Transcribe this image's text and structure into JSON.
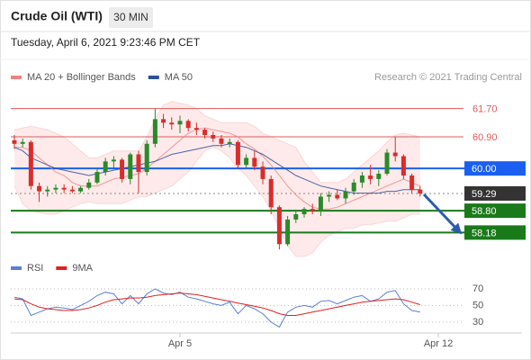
{
  "chart_data": [
    {
      "type": "candlestick",
      "title": "Crude Oil (WTI)",
      "interval": "30 MIN",
      "subtitle": "Tuesday, April 6, 2021 9:23:46 PM CET",
      "source": "Research © 2021 Trading Central",
      "up_color": "#2a8a2a",
      "down_color": "#d92c2c",
      "xlim": [
        -0.43,
        54.78
      ],
      "ylim": [
        57.5,
        62.1
      ],
      "ohlc": [
        [
          60.8,
          60.95,
          60.55,
          60.7
        ],
        [
          60.7,
          60.85,
          60.6,
          60.75
        ],
        [
          60.75,
          60.8,
          59.4,
          59.5
        ],
        [
          59.5,
          59.6,
          59.05,
          59.35
        ],
        [
          59.35,
          59.5,
          59.2,
          59.4
        ],
        [
          59.4,
          59.55,
          59.3,
          59.45
        ],
        [
          59.45,
          59.55,
          59.3,
          59.4
        ],
        [
          59.4,
          59.5,
          59.3,
          59.35
        ],
        [
          59.35,
          59.5,
          59.3,
          59.45
        ],
        [
          59.45,
          59.7,
          59.4,
          59.6
        ],
        [
          59.6,
          60.0,
          59.55,
          59.9
        ],
        [
          59.9,
          60.3,
          59.8,
          60.2
        ],
        [
          60.2,
          60.35,
          60.0,
          60.25
        ],
        [
          60.25,
          60.3,
          59.6,
          59.7
        ],
        [
          59.7,
          60.45,
          59.55,
          60.4
        ],
        [
          60.4,
          60.5,
          59.3,
          59.9
        ],
        [
          59.9,
          60.8,
          59.8,
          60.7
        ],
        [
          60.7,
          61.7,
          60.6,
          61.4
        ],
        [
          61.4,
          61.55,
          61.15,
          61.3
        ],
        [
          61.3,
          61.45,
          61.1,
          61.25
        ],
        [
          61.25,
          61.5,
          61.0,
          61.35
        ],
        [
          61.35,
          61.4,
          61.05,
          61.15
        ],
        [
          61.15,
          61.3,
          60.95,
          61.1
        ],
        [
          61.1,
          61.15,
          60.85,
          60.95
        ],
        [
          60.95,
          61.05,
          60.75,
          60.85
        ],
        [
          60.85,
          60.95,
          60.6,
          60.7
        ],
        [
          60.7,
          60.85,
          60.6,
          60.75
        ],
        [
          60.75,
          60.8,
          60.0,
          60.1
        ],
        [
          60.1,
          60.4,
          60.0,
          60.3
        ],
        [
          60.3,
          60.5,
          59.95,
          60.05
        ],
        [
          60.05,
          60.2,
          59.55,
          59.7
        ],
        [
          59.7,
          59.8,
          58.7,
          58.9
        ],
        [
          58.9,
          58.95,
          57.7,
          57.85
        ],
        [
          57.85,
          58.65,
          57.8,
          58.55
        ],
        [
          58.55,
          58.8,
          58.45,
          58.7
        ],
        [
          58.7,
          58.9,
          58.6,
          58.85
        ],
        [
          58.85,
          59.0,
          58.7,
          58.8
        ],
        [
          58.8,
          59.3,
          58.65,
          59.2
        ],
        [
          59.2,
          59.35,
          59.05,
          59.25
        ],
        [
          59.25,
          59.4,
          59.1,
          59.15
        ],
        [
          59.15,
          59.45,
          59.0,
          59.35
        ],
        [
          59.35,
          59.7,
          59.25,
          59.6
        ],
        [
          59.6,
          59.9,
          59.45,
          59.8
        ],
        [
          59.8,
          60.1,
          59.55,
          59.7
        ],
        [
          59.7,
          59.95,
          59.5,
          59.85
        ],
        [
          59.85,
          60.55,
          59.8,
          60.45
        ],
        [
          60.45,
          60.9,
          60.2,
          60.35
        ],
        [
          60.35,
          60.4,
          59.7,
          59.8
        ],
        [
          59.8,
          59.85,
          59.3,
          59.4
        ],
        [
          59.4,
          59.5,
          59.2,
          59.29
        ]
      ],
      "series": [
        {
          "name": "MA 20 + Bollinger Bands",
          "color": "#f08080",
          "values": [
            60.6,
            60.6,
            60.5,
            60.3,
            60.1,
            59.9,
            59.8,
            59.6,
            59.5,
            59.5,
            59.5,
            59.6,
            59.7,
            59.75,
            59.8,
            59.85,
            60.0,
            60.2,
            60.4,
            60.6,
            60.8,
            61.0,
            61.1,
            61.15,
            61.1,
            61.05,
            61.0,
            60.9,
            60.7,
            60.55,
            60.35,
            60.1,
            59.8,
            59.5,
            59.25,
            59.05,
            58.9,
            58.85,
            58.85,
            58.9,
            59.0,
            59.1,
            59.2,
            59.3,
            59.4,
            59.5,
            59.6,
            59.7,
            59.6,
            59.5
          ],
          "upper": [
            61.1,
            61.15,
            61.2,
            61.15,
            61.1,
            61.0,
            60.9,
            60.7,
            60.5,
            60.3,
            60.3,
            60.4,
            60.5,
            60.5,
            60.5,
            60.5,
            60.9,
            61.4,
            61.8,
            61.9,
            61.85,
            61.8,
            61.7,
            61.5,
            61.4,
            61.3,
            61.3,
            61.3,
            61.3,
            61.2,
            61.0,
            60.9,
            60.8,
            60.7,
            60.6,
            60.2,
            59.9,
            59.6,
            59.6,
            59.6,
            59.7,
            59.9,
            60.1,
            60.3,
            60.5,
            60.75,
            60.95,
            61.0,
            60.95,
            60.9
          ],
          "lower": [
            59.5,
            59.0,
            58.8,
            58.75,
            58.7,
            58.7,
            58.8,
            58.9,
            59.0,
            59.05,
            59.0,
            59.0,
            59.0,
            59.0,
            59.1,
            59.2,
            59.2,
            59.3,
            59.4,
            59.5,
            59.7,
            59.9,
            60.2,
            60.5,
            60.6,
            60.5,
            60.3,
            60.0,
            59.8,
            59.5,
            59.2,
            58.8,
            58.3,
            57.8,
            57.5,
            57.5,
            57.6,
            57.9,
            58.1,
            58.2,
            58.3,
            58.3,
            58.4,
            58.4,
            58.45,
            58.5,
            58.5,
            58.6,
            58.7,
            58.7
          ]
        },
        {
          "name": "MA 50",
          "color": "#2a4e9a",
          "values": [
            60.6,
            60.5,
            60.3,
            60.2,
            60.1,
            60.0,
            59.95,
            59.9,
            59.85,
            59.8,
            59.85,
            59.9,
            59.95,
            60.0,
            60.05,
            60.1,
            60.15,
            60.2,
            60.3,
            60.4,
            60.45,
            60.5,
            60.55,
            60.6,
            60.65,
            60.65,
            60.7,
            60.65,
            60.6,
            60.5,
            60.4,
            60.25,
            60.1,
            59.95,
            59.8,
            59.7,
            59.6,
            59.5,
            59.45,
            59.4,
            59.35,
            59.3,
            59.3,
            59.3,
            59.3,
            59.35,
            59.35,
            59.4,
            59.4,
            59.4
          ]
        }
      ],
      "levels": [
        {
          "value": 61.7,
          "label": "61.70",
          "color": "#e05a5a",
          "box": false,
          "dash": false
        },
        {
          "value": 60.9,
          "label": "60.90",
          "color": "#e05a5a",
          "box": false,
          "dash": false
        },
        {
          "value": 60.0,
          "label": "60.00",
          "color": "#1a5ff0",
          "box": true,
          "dash": false
        },
        {
          "value": 59.29,
          "color": "#333333",
          "box": true,
          "dash": true
        },
        {
          "value": 58.8,
          "label": "58.80",
          "color": "#1a7a1a",
          "box": true,
          "dash": false
        },
        {
          "value": 58.18,
          "color": "#1a7a1a",
          "box": true,
          "dash": false
        }
      ]
    },
    {
      "type": "line",
      "xlim": [
        -0.43,
        54.78
      ],
      "ylim": [
        19,
        76.5
      ],
      "yticks": [
        70,
        50,
        30
      ],
      "xticks": [
        {
          "value": 20,
          "label": "Apr 5"
        },
        {
          "value": 51.2,
          "label": "Apr 12"
        }
      ],
      "series": [
        {
          "name": "RSI",
          "color": "#5a7fd6",
          "values": [
            60,
            58,
            38,
            42,
            46,
            48,
            47,
            45,
            50,
            55,
            62,
            66,
            64,
            52,
            62,
            52,
            64,
            70,
            65,
            63,
            66,
            60,
            58,
            55,
            52,
            50,
            54,
            40,
            50,
            46,
            40,
            30,
            24,
            42,
            48,
            50,
            48,
            55,
            56,
            52,
            56,
            60,
            62,
            55,
            58,
            66,
            68,
            52,
            44,
            42
          ]
        },
        {
          "name": "9MA",
          "color": "#e02020",
          "values": [
            58,
            57,
            52,
            48,
            46,
            45,
            44,
            44,
            45,
            47,
            50,
            54,
            57,
            58,
            59,
            59,
            60,
            62,
            63,
            64,
            65,
            64,
            63,
            61,
            59,
            57,
            55,
            53,
            51,
            49,
            47,
            44,
            40,
            38,
            38,
            40,
            42,
            44,
            46,
            48,
            50,
            52,
            54,
            55,
            56,
            57,
            58,
            57,
            54,
            51
          ]
        }
      ]
    }
  ]
}
